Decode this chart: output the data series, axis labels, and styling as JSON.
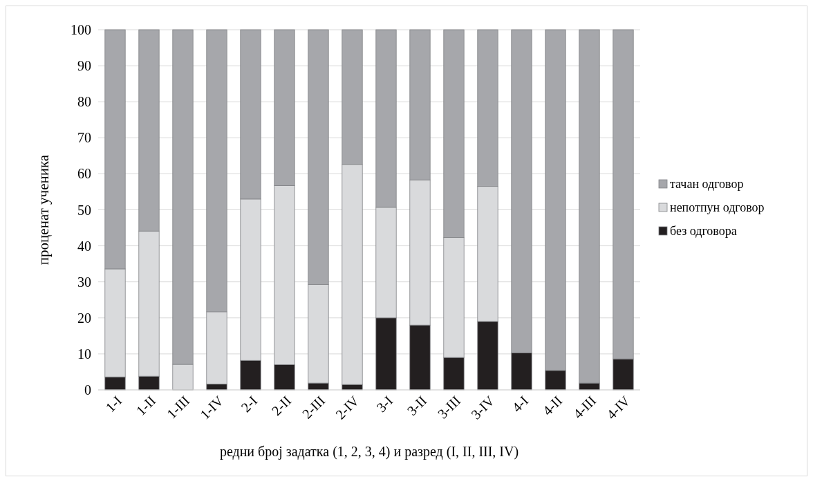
{
  "chart_data": {
    "type": "bar",
    "stacked": true,
    "xlabel": "редни број задатка (1, 2, 3, 4) и разред (I, II, III, IV)",
    "ylabel": "проценат ученика",
    "categories": [
      "1-I",
      "1-II",
      "1-III",
      "1-IV",
      "2-I",
      "2-II",
      "2-III",
      "2-IV",
      "3-I",
      "3-II",
      "3-III",
      "3-IV",
      "4-I",
      "4-II",
      "4-III",
      "4-IV"
    ],
    "series": [
      {
        "name": "без одговора",
        "color": "#231f20",
        "values": [
          3.6,
          3.8,
          0,
          1.6,
          8.2,
          7,
          1.9,
          1.5,
          20,
          18,
          9,
          19,
          10.3,
          5.4,
          1.9,
          8.6
        ]
      },
      {
        "name": "непотпун одговор",
        "color": "#d9dadc",
        "values": [
          30,
          40.3,
          7.1,
          20.1,
          44.8,
          49.7,
          27.4,
          61.1,
          30.7,
          40.3,
          33.3,
          37.5,
          0,
          0,
          0,
          0
        ]
      },
      {
        "name": "тачан одговор",
        "color": "#a6a7ab",
        "values": [
          66.4,
          55.9,
          92.9,
          78.3,
          47,
          43.3,
          70.7,
          37.4,
          49.3,
          41.7,
          57.7,
          43.5,
          89.7,
          94.6,
          98.1,
          91.4
        ]
      }
    ],
    "ylim": [
      0,
      100
    ],
    "yticks": [
      0,
      10,
      20,
      30,
      40,
      50,
      60,
      70,
      80,
      90,
      100
    ],
    "grid": "y",
    "legend": "right"
  }
}
